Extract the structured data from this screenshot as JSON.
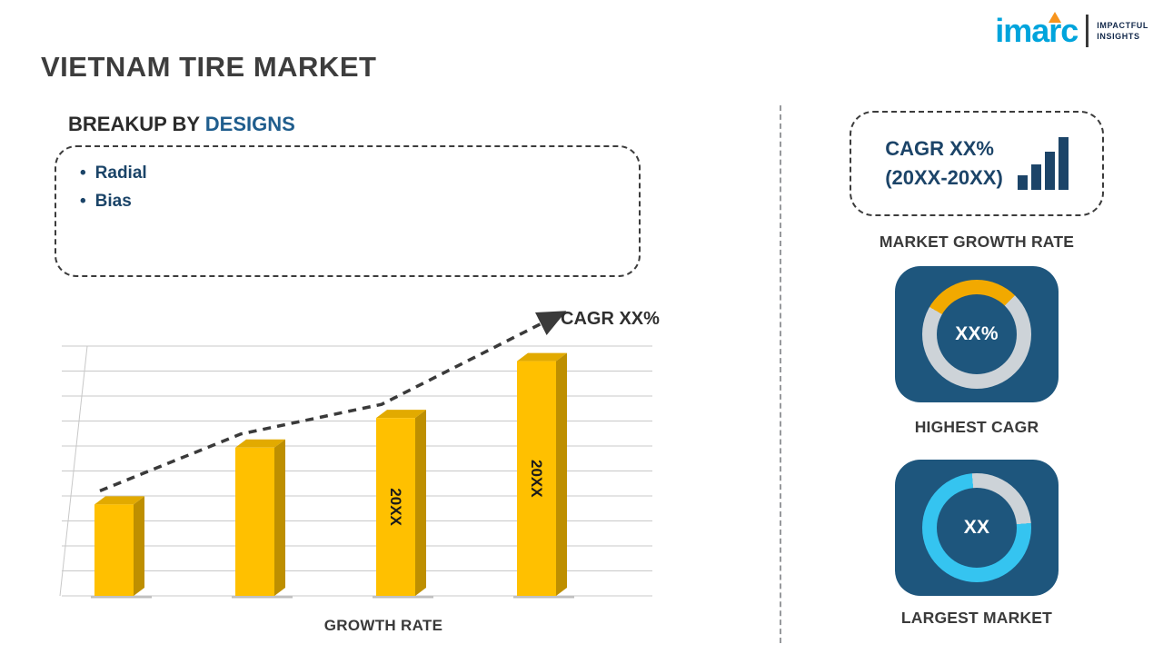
{
  "header": {
    "title": "VIETNAM TIRE MARKET"
  },
  "logo": {
    "brand": "imarc",
    "tagline_line1": "IMPACTFUL",
    "tagline_line2": "INSIGHTS",
    "brand_color": "#00a4dc",
    "accent_color": "#f7941d"
  },
  "left_panel": {
    "heading_prefix": "BREAKUP BY ",
    "heading_highlight": "DESIGNS",
    "items": [
      "Radial",
      "Bias"
    ]
  },
  "chart_data": {
    "type": "bar",
    "title": "GROWTH RATE",
    "xlabel": "GROWTH RATE",
    "ylabel": "",
    "ylim": [
      0,
      100
    ],
    "grid": true,
    "values": [
      37,
      60,
      72,
      95
    ],
    "bar_labels": [
      "",
      "",
      "20XX",
      "20XX"
    ],
    "trend_label": "CAGR XX%",
    "legend": "none",
    "colors": {
      "bar_front": "#FFC000",
      "bar_side": "#BE8F00",
      "bar_top": "#E2AA00",
      "trend": "#3a3a3a",
      "grid": "#c8c8c8",
      "bar_label": "#1a1a1a"
    }
  },
  "right_panel": {
    "growth_badge": {
      "line1": "CAGR XX%",
      "line2": "(20XX-20XX)",
      "caption": "MARKET GROWTH RATE"
    },
    "highest_cagr": {
      "value": "XX%",
      "caption": "HIGHEST CAGR",
      "donut": {
        "start_deg": -60,
        "percent": 29,
        "arc_color": "#F2A900",
        "track_color": "#CDD3D8"
      }
    },
    "largest_market": {
      "value": "XX",
      "caption": "LARGEST MARKET",
      "donut": {
        "start_deg": 85,
        "percent": 75,
        "arc_color": "#35C4F0",
        "track_color": "#CDD3D8"
      }
    },
    "card_color": "#1e567d"
  }
}
